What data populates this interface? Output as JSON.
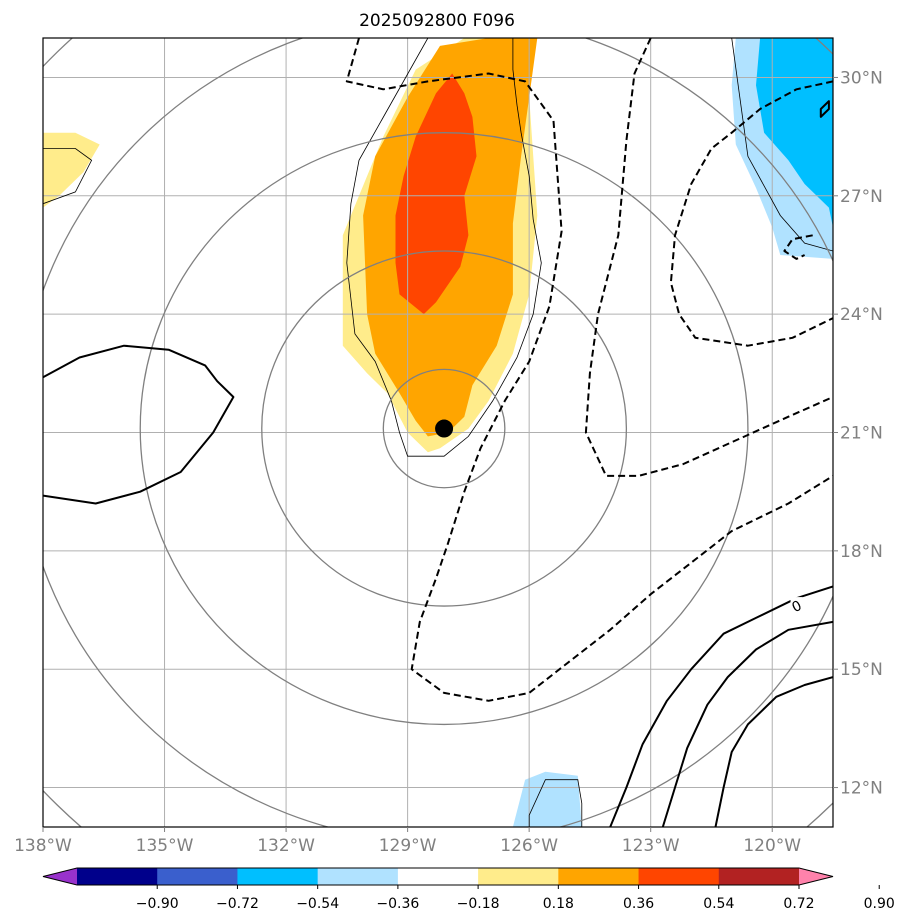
{
  "chart_data": {
    "type": "contour",
    "title": "2025092800 F096",
    "xlim": [
      -138,
      -118.5
    ],
    "ylim": [
      11,
      31
    ],
    "x_ticks": [
      -138,
      -135,
      -132,
      -129,
      -126,
      -123,
      -120
    ],
    "x_tick_labels": [
      "138°W",
      "135°W",
      "132°W",
      "129°W",
      "126°W",
      "123°W",
      "120°W"
    ],
    "y_ticks": [
      12,
      15,
      18,
      21,
      24,
      27,
      30
    ],
    "y_tick_labels": [
      "12°N",
      "15°N",
      "18°N",
      "21°N",
      "24°N",
      "27°N",
      "30°N"
    ],
    "grid": true,
    "center_marker": {
      "lon": -128.1,
      "lat": 21.1
    },
    "range_rings": {
      "center_lon": -128.1,
      "center_lat": 21.1,
      "radii_deg": [
        1.5,
        4.5,
        7.5,
        10.5,
        13.5
      ]
    },
    "filled_levels": [
      -0.9,
      -0.72,
      -0.54,
      -0.36,
      -0.18,
      0.18,
      0.36,
      0.54,
      0.72,
      0.9
    ],
    "colorbar_labels": [
      "−0.90",
      "−0.72",
      "−0.54",
      "−0.36",
      "−0.18",
      "0.18",
      "0.36",
      "0.54",
      "0.72",
      "0.90"
    ],
    "colorbar_colors": [
      "#9932cc",
      "#00008b",
      "#3a5fcd",
      "#00bfff",
      "#b0e2ff",
      "#ffffff",
      "#ffec8b",
      "#ffa500",
      "#ff4500",
      "#b22222",
      "#ff82ab"
    ],
    "contour_label": "0",
    "contour_label_pos": {
      "lon": -119.4,
      "lat": 16.6
    },
    "filled_regions": [
      {
        "name": "positive-main-light",
        "color": "#ffec8b",
        "points": [
          [
            -127.6,
            31
          ],
          [
            -126.4,
            31
          ],
          [
            -126.0,
            29.5
          ],
          [
            -125.8,
            26.5
          ],
          [
            -126.0,
            24.5
          ],
          [
            -126.4,
            23
          ],
          [
            -127.0,
            21.8
          ],
          [
            -127.5,
            21.1
          ],
          [
            -128.2,
            20.6
          ],
          [
            -128.5,
            20.5
          ],
          [
            -129.0,
            21.0
          ],
          [
            -129.5,
            22.0
          ],
          [
            -130.0,
            22.5
          ],
          [
            -130.6,
            23.2
          ],
          [
            -130.6,
            26
          ],
          [
            -130.2,
            27
          ],
          [
            -129.6,
            28.5
          ],
          [
            -128.8,
            30.2
          ]
        ]
      },
      {
        "name": "positive-main-orange",
        "color": "#ffa500",
        "points": [
          [
            -127.0,
            31
          ],
          [
            -125.8,
            31
          ],
          [
            -126.0,
            29.5
          ],
          [
            -126.2,
            28
          ],
          [
            -126.4,
            26.3
          ],
          [
            -126.4,
            24.5
          ],
          [
            -126.8,
            23.2
          ],
          [
            -127.4,
            22.2
          ],
          [
            -127.6,
            21.4
          ],
          [
            -128.0,
            21.0
          ],
          [
            -128.5,
            20.9
          ],
          [
            -128.8,
            21.3
          ],
          [
            -129.2,
            22.0
          ],
          [
            -129.8,
            23.0
          ],
          [
            -130.0,
            24
          ],
          [
            -130.1,
            26.5
          ],
          [
            -129.8,
            28
          ],
          [
            -129.0,
            29.5
          ],
          [
            -128.2,
            30.8
          ]
        ]
      },
      {
        "name": "positive-main-red",
        "color": "#ff4500",
        "points": [
          [
            -127.9,
            30.1
          ],
          [
            -127.6,
            29.6
          ],
          [
            -127.4,
            29.0
          ],
          [
            -127.3,
            28.0
          ],
          [
            -127.6,
            27.0
          ],
          [
            -127.5,
            26.0
          ],
          [
            -127.7,
            25.2
          ],
          [
            -128.3,
            24.3
          ],
          [
            -128.6,
            24.0
          ],
          [
            -129.2,
            24.5
          ],
          [
            -129.3,
            25.3
          ],
          [
            -129.3,
            26.5
          ],
          [
            -129.1,
            27.5
          ],
          [
            -128.8,
            28.5
          ],
          [
            -128.3,
            29.6
          ]
        ]
      },
      {
        "name": "positive-west-light",
        "color": "#ffec8b",
        "points": [
          [
            -138.0,
            28.6
          ],
          [
            -137.2,
            28.6
          ],
          [
            -136.6,
            28.3
          ],
          [
            -137.0,
            27.6
          ],
          [
            -137.6,
            27.0
          ],
          [
            -138.0,
            26.7
          ]
        ]
      },
      {
        "name": "negative-ne-light",
        "color": "#b0e2ff",
        "points": [
          [
            -119.8,
            31
          ],
          [
            -118.5,
            31
          ],
          [
            -118.5,
            25.4
          ],
          [
            -119.8,
            25.5
          ],
          [
            -120.0,
            26.2
          ],
          [
            -120.4,
            27.2
          ],
          [
            -120.9,
            28.3
          ],
          [
            -121.0,
            29.8
          ],
          [
            -120.9,
            31
          ]
        ]
      },
      {
        "name": "negative-ne-blue",
        "color": "#00bfff",
        "points": [
          [
            -120.3,
            31
          ],
          [
            -118.5,
            31
          ],
          [
            -118.5,
            26.2
          ],
          [
            -118.6,
            26.7
          ],
          [
            -119.2,
            27.3
          ],
          [
            -119.6,
            27.9
          ],
          [
            -120.2,
            28.6
          ],
          [
            -120.4,
            29.8
          ]
        ]
      },
      {
        "name": "negative-south-light",
        "color": "#b0e2ff",
        "points": [
          [
            -126.4,
            11
          ],
          [
            -126.1,
            12.2
          ],
          [
            -125.6,
            12.4
          ],
          [
            -124.8,
            12.3
          ],
          [
            -124.7,
            11
          ]
        ]
      }
    ],
    "thin_contours": [
      {
        "name": "thin-main-outline",
        "closed": false,
        "points": [
          [
            -128.5,
            31
          ],
          [
            -130.2,
            27.9
          ],
          [
            -130.4,
            26.8
          ],
          [
            -130.5,
            25.3
          ],
          [
            -130.3,
            23.5
          ],
          [
            -129.8,
            22.8
          ],
          [
            -129.4,
            21.8
          ],
          [
            -129.2,
            21.0
          ],
          [
            -129.0,
            20.4
          ],
          [
            -128.1,
            20.4
          ],
          [
            -127.5,
            20.9
          ],
          [
            -126.9,
            21.8
          ],
          [
            -126.3,
            22.9
          ],
          [
            -125.9,
            24.0
          ],
          [
            -125.7,
            25.3
          ],
          [
            -125.9,
            26.4
          ],
          [
            -126.0,
            27.5
          ],
          [
            -126.2,
            28.6
          ],
          [
            -126.3,
            29.3
          ],
          [
            -126.4,
            30.2
          ],
          [
            -126.4,
            31
          ]
        ]
      },
      {
        "name": "thin-west-outline",
        "closed": false,
        "points": [
          [
            -138.0,
            28.2
          ],
          [
            -137.2,
            28.2
          ],
          [
            -136.8,
            27.9
          ],
          [
            -137.2,
            27.1
          ],
          [
            -138.0,
            26.8
          ]
        ]
      },
      {
        "name": "thin-ne-outline",
        "closed": false,
        "points": [
          [
            -121.0,
            31
          ],
          [
            -120.8,
            29.5
          ],
          [
            -120.6,
            28.0
          ],
          [
            -119.8,
            26.5
          ],
          [
            -119.2,
            25.8
          ],
          [
            -118.5,
            25.6
          ]
        ]
      },
      {
        "name": "thin-south-outline",
        "closed": false,
        "points": [
          [
            -126.0,
            11
          ],
          [
            -126.0,
            11.3
          ],
          [
            -125.6,
            12.2
          ],
          [
            -124.8,
            12.2
          ],
          [
            -124.7,
            11.6
          ],
          [
            -124.7,
            11
          ]
        ]
      }
    ],
    "solid_contours": [
      {
        "name": "solid-west-loop",
        "closed": false,
        "points": [
          [
            -138.0,
            22.4
          ],
          [
            -137.1,
            22.9
          ],
          [
            -136.0,
            23.2
          ],
          [
            -134.9,
            23.1
          ],
          [
            -134.0,
            22.7
          ],
          [
            -133.7,
            22.3
          ],
          [
            -133.3,
            21.9
          ],
          [
            -133.8,
            21.0
          ],
          [
            -134.6,
            20.0
          ],
          [
            -135.6,
            19.5
          ],
          [
            -136.7,
            19.2
          ],
          [
            -138.0,
            19.4
          ]
        ]
      },
      {
        "name": "solid-se-1",
        "closed": false,
        "points": [
          [
            -118.5,
            17.1
          ],
          [
            -119.4,
            16.8
          ],
          [
            -120.4,
            16.3
          ],
          [
            -121.2,
            15.9
          ],
          [
            -122.0,
            15.0
          ],
          [
            -122.6,
            14.2
          ],
          [
            -123.2,
            13.1
          ],
          [
            -123.6,
            12.0
          ],
          [
            -124.0,
            11
          ]
        ]
      },
      {
        "name": "solid-se-2",
        "closed": false,
        "points": [
          [
            -118.5,
            16.2
          ],
          [
            -119.6,
            16.0
          ],
          [
            -120.4,
            15.5
          ],
          [
            -121.1,
            14.8
          ],
          [
            -121.6,
            14.1
          ],
          [
            -122.1,
            13.0
          ],
          [
            -122.4,
            12.0
          ],
          [
            -122.7,
            11
          ]
        ]
      },
      {
        "name": "solid-se-3",
        "closed": false,
        "points": [
          [
            -118.5,
            14.8
          ],
          [
            -119.2,
            14.6
          ],
          [
            -119.9,
            14.3
          ],
          [
            -120.6,
            13.6
          ],
          [
            -121.0,
            12.9
          ],
          [
            -121.2,
            12.0
          ],
          [
            -121.4,
            11
          ]
        ]
      },
      {
        "name": "solid-ne-small",
        "closed": true,
        "points": [
          [
            -118.8,
            29.0
          ],
          [
            -118.6,
            29.2
          ],
          [
            -118.6,
            29.4
          ],
          [
            -118.8,
            29.2
          ]
        ]
      }
    ],
    "dashed_contours": [
      {
        "name": "dashed-top-left",
        "closed": false,
        "points": [
          [
            -130.2,
            31
          ],
          [
            -130.5,
            29.9
          ],
          [
            -129.6,
            29.7
          ],
          [
            -128.5,
            29.9
          ],
          [
            -127.0,
            30.1
          ],
          [
            -126.1,
            29.9
          ],
          [
            -125.4,
            28.9
          ],
          [
            -125.2,
            26.1
          ],
          [
            -125.5,
            24.2
          ],
          [
            -126.0,
            22.8
          ],
          [
            -126.6,
            21.8
          ],
          [
            -127.2,
            20.6
          ],
          [
            -127.6,
            19.5
          ],
          [
            -128.0,
            18.2
          ],
          [
            -128.3,
            17.3
          ],
          [
            -128.7,
            16.2
          ],
          [
            -128.9,
            15.0
          ],
          [
            -128.1,
            14.4
          ],
          [
            -127.0,
            14.2
          ],
          [
            -126.0,
            14.4
          ],
          [
            -125.0,
            15.2
          ],
          [
            -124.0,
            16.0
          ],
          [
            -123.0,
            16.9
          ],
          [
            -122.0,
            17.7
          ],
          [
            -121.0,
            18.5
          ],
          [
            -119.6,
            19.2
          ],
          [
            -118.5,
            19.9
          ]
        ]
      },
      {
        "name": "dashed-right-loop",
        "closed": false,
        "points": [
          [
            -123.0,
            31
          ],
          [
            -123.4,
            30.1
          ],
          [
            -123.6,
            28.4
          ],
          [
            -123.8,
            26.0
          ],
          [
            -124.3,
            24.0
          ],
          [
            -124.5,
            22.5
          ],
          [
            -124.6,
            21.0
          ],
          [
            -124.1,
            19.9
          ],
          [
            -123.3,
            19.9
          ],
          [
            -122.2,
            20.2
          ],
          [
            -120.9,
            20.8
          ],
          [
            -119.6,
            21.4
          ],
          [
            -118.5,
            21.9
          ]
        ]
      },
      {
        "name": "dashed-ne-loop",
        "closed": false,
        "points": [
          [
            -118.5,
            29.9
          ],
          [
            -119.4,
            29.7
          ],
          [
            -120.3,
            29.2
          ],
          [
            -121.0,
            28.6
          ],
          [
            -121.5,
            28.2
          ],
          [
            -122.0,
            27.3
          ],
          [
            -122.4,
            26.0
          ],
          [
            -122.5,
            24.8
          ],
          [
            -122.3,
            24.0
          ],
          [
            -121.9,
            23.4
          ],
          [
            -120.6,
            23.2
          ],
          [
            -119.5,
            23.4
          ],
          [
            -118.5,
            23.9
          ]
        ]
      },
      {
        "name": "dashed-ne-small",
        "closed": false,
        "points": [
          [
            -119.0,
            26.0
          ],
          [
            -119.5,
            25.9
          ],
          [
            -119.7,
            25.6
          ],
          [
            -119.4,
            25.4
          ],
          [
            -119.2,
            25.5
          ]
        ]
      }
    ]
  }
}
